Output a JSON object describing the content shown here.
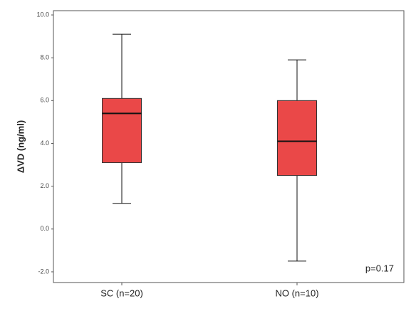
{
  "chart_data": {
    "type": "box",
    "y_label": "ΔVD  (ng/ml)",
    "categories": [
      "SC (n=20)",
      "NO (n=10)"
    ],
    "boxes": [
      {
        "min": 1.2,
        "q1": 3.1,
        "median": 5.4,
        "q3": 6.1,
        "max": 9.1
      },
      {
        "min": -1.5,
        "q1": 2.5,
        "median": 4.1,
        "q3": 6.0,
        "max": 7.9
      }
    ],
    "color": "#ea4848",
    "ylim": [
      -2.5,
      10.2
    ],
    "yticks": [
      {
        "value": -2,
        "label": "-2.0"
      },
      {
        "value": 0,
        "label": "0.0"
      },
      {
        "value": 2,
        "label": "2.0"
      },
      {
        "value": 4,
        "label": "4.0"
      },
      {
        "value": 6,
        "label": "6.0"
      },
      {
        "value": 8,
        "label": "8.0"
      },
      {
        "value": 10,
        "label": "10.0"
      }
    ],
    "annotation": "p=0.17"
  }
}
